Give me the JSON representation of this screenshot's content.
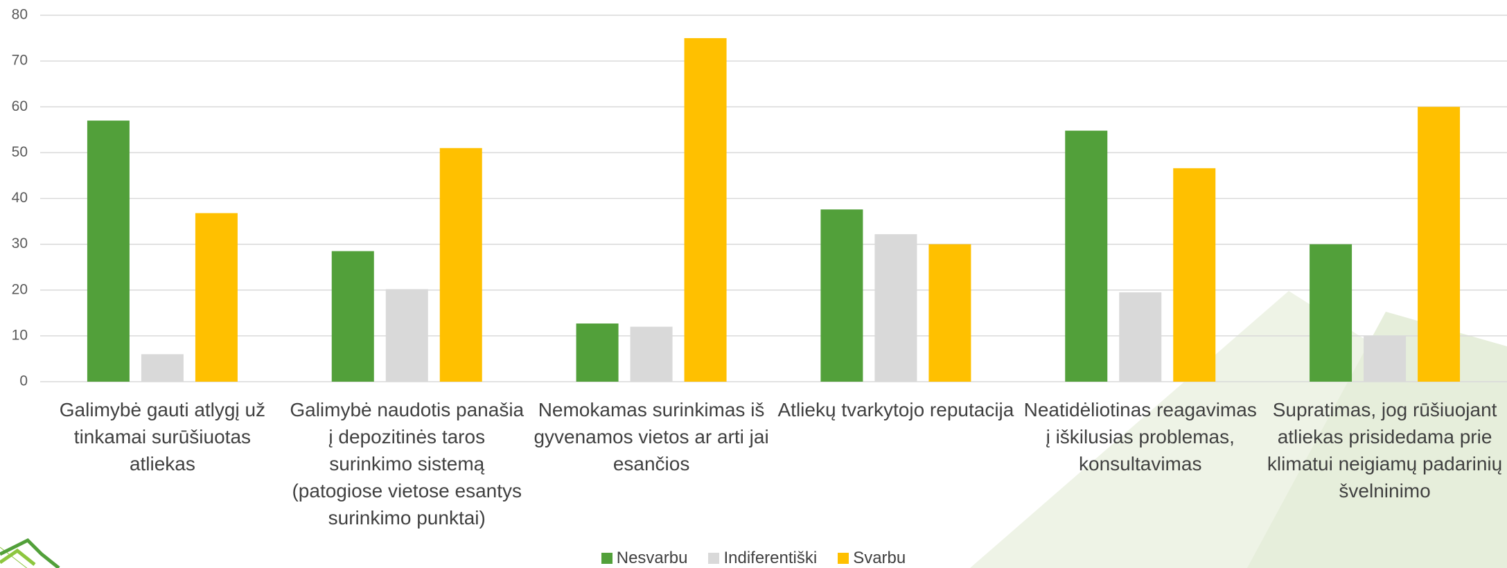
{
  "chart_data": {
    "type": "bar",
    "categories": [
      "Galimybė gauti atlygį už tinkamai surūšiuotas atliekas",
      "Galimybė naudotis panašia į depozitinės taros surinkimo sistemą (patogiose vietose esantys surinkimo punktai)",
      "Nemokamas surinkimas iš gyvenamos vietos ar arti jai esančios",
      "Atliekų tvarkytojo reputacija",
      "Neatidėliotinas reagavimas į iškilusias problemas, konsultavimas",
      "Supratimas, jog rūšiuojant atliekas prisidedama prie klimatui neigiamų padarinių švelninimo"
    ],
    "series": [
      {
        "name": "Nesvarbu",
        "color": "#52a03a",
        "values": [
          57,
          28.5,
          12.7,
          37.6,
          54.8,
          30
        ]
      },
      {
        "name": "Indiferentiški",
        "color": "#d9d9d9",
        "values": [
          6,
          20.2,
          12,
          32.2,
          19.5,
          10
        ]
      },
      {
        "name": "Svarbu",
        "color": "#ffc000",
        "values": [
          36.8,
          51,
          75,
          30,
          46.6,
          60
        ]
      }
    ],
    "ylim": [
      0,
      80
    ],
    "yticks": [
      0,
      10,
      20,
      30,
      40,
      50,
      60,
      70,
      80
    ],
    "grid": true,
    "legend": "bottom"
  }
}
